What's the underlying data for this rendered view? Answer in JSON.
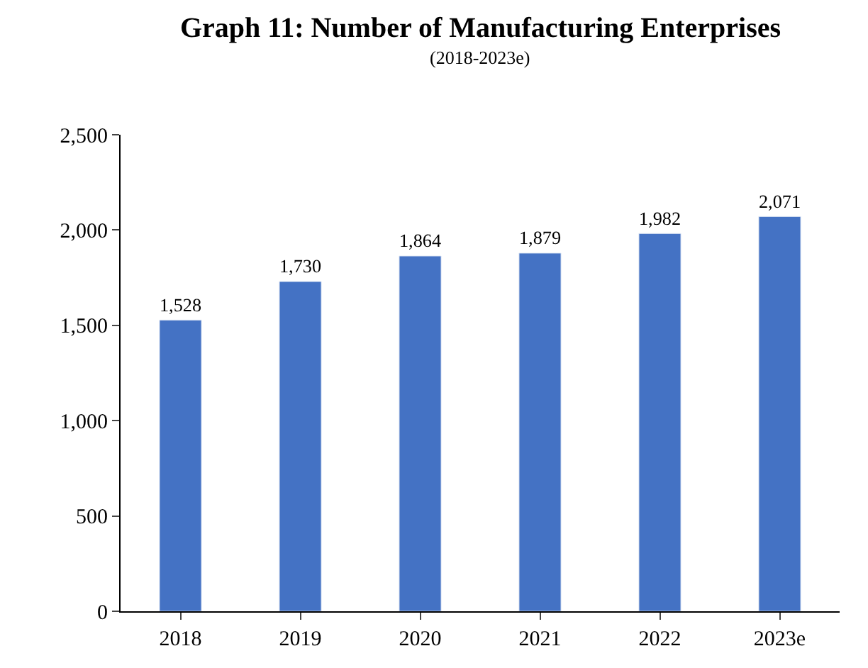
{
  "chart_data": {
    "type": "bar",
    "title": "Graph 11: Number of Manufacturing Enterprises",
    "subtitle": "(2018-2023e)",
    "categories": [
      "2018",
      "2019",
      "2020",
      "2021",
      "2022",
      "2023e"
    ],
    "values": [
      1528,
      1730,
      1864,
      1879,
      1982,
      2071
    ],
    "value_labels": [
      "1,528",
      "1,730",
      "1,864",
      "1,879",
      "1,982",
      "2,071"
    ],
    "color": "#4472c4",
    "ylim": [
      0,
      2500
    ],
    "yticks": [
      {
        "value": 0,
        "label": "0"
      },
      {
        "value": 500,
        "label": "500"
      },
      {
        "value": 1000,
        "label": "1,000"
      },
      {
        "value": 1500,
        "label": "1,500"
      },
      {
        "value": 2000,
        "label": "2,000"
      },
      {
        "value": 2500,
        "label": "2,500"
      }
    ]
  }
}
